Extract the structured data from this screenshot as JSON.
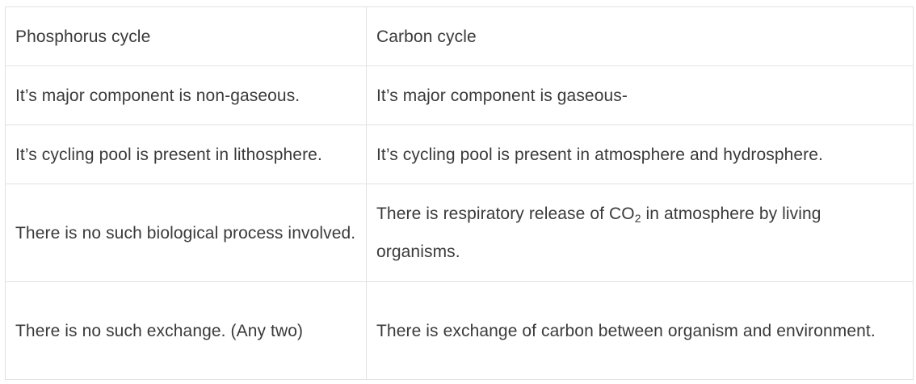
{
  "table": {
    "header": {
      "col1": "Phosphorus cycle",
      "col2": "Carbon cycle"
    },
    "rows": [
      {
        "col1": "It’s major component is non-gaseous.",
        "col2": "It’s major component is gaseous-"
      },
      {
        "col1": "It’s cycling pool is present in lithosphere.",
        "col2": "It’s cycling pool is present in atmosphere and hydrosphere."
      },
      {
        "col1": "There is no such biological process involved.",
        "col2_before": "There is respiratory release of CO",
        "col2_sub": "2",
        "col2_after": " in atmosphere by living organisms."
      },
      {
        "col1": "There is no such exchange. (Any two)",
        "col2": "There is exchange of carbon between organism and environment."
      }
    ]
  }
}
